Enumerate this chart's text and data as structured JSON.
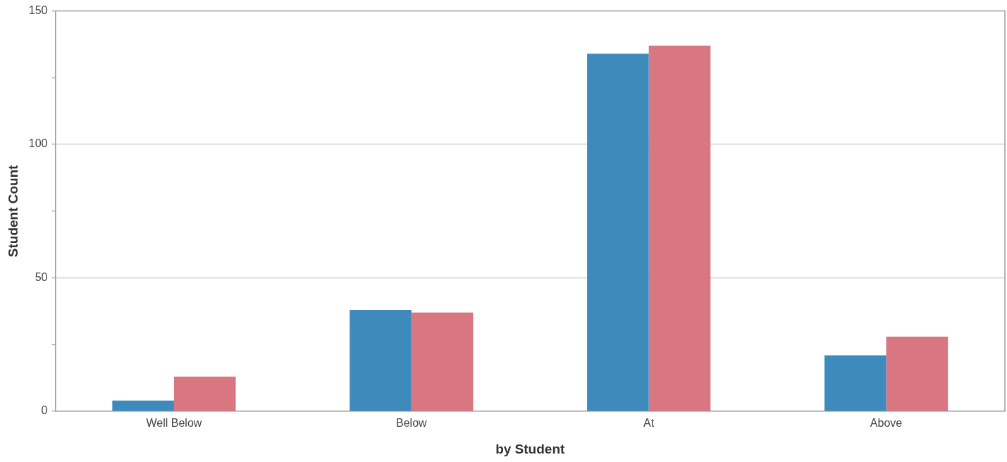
{
  "chart_data": {
    "type": "bar",
    "xlabel": "by Student",
    "ylabel": "Student Count",
    "categories": [
      "Well Below",
      "Below",
      "At",
      "Above"
    ],
    "series": [
      {
        "color": "#3f8abd",
        "values": [
          4,
          38,
          134,
          21
        ]
      },
      {
        "color": "#d87682",
        "values": [
          13,
          37,
          137,
          28
        ]
      }
    ],
    "ylim": [
      0,
      150
    ],
    "yticks": [
      0,
      {
        "value": 25,
        "label": null
      },
      50,
      {
        "value": 75,
        "label": null
      },
      100,
      {
        "value": 125,
        "label": null
      },
      150
    ],
    "grid": "y",
    "legend": false
  }
}
